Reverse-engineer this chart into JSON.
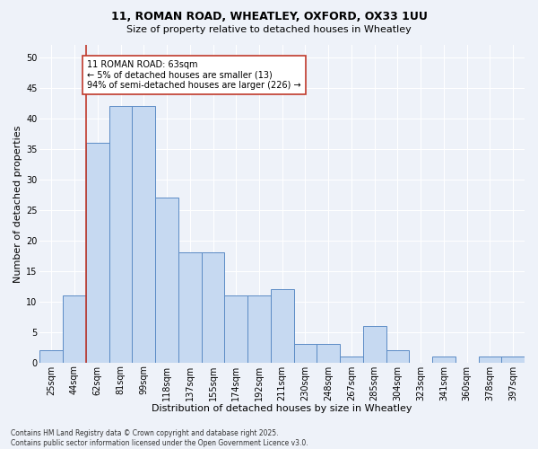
{
  "title_line1": "11, ROMAN ROAD, WHEATLEY, OXFORD, OX33 1UU",
  "title_line2": "Size of property relative to detached houses in Wheatley",
  "xlabel": "Distribution of detached houses by size in Wheatley",
  "ylabel": "Number of detached properties",
  "categories": [
    "25sqm",
    "44sqm",
    "62sqm",
    "81sqm",
    "99sqm",
    "118sqm",
    "137sqm",
    "155sqm",
    "174sqm",
    "192sqm",
    "211sqm",
    "230sqm",
    "248sqm",
    "267sqm",
    "285sqm",
    "304sqm",
    "323sqm",
    "341sqm",
    "360sqm",
    "378sqm",
    "397sqm"
  ],
  "values": [
    2,
    11,
    36,
    42,
    42,
    27,
    18,
    18,
    11,
    11,
    12,
    3,
    3,
    1,
    6,
    2,
    0,
    1,
    0,
    1,
    1
  ],
  "bar_color": "#c6d9f1",
  "bar_edge_color": "#5b8bc5",
  "vline_color": "#c0392b",
  "vline_x_index": 1.5,
  "annotation_text": "11 ROMAN ROAD: 63sqm\n← 5% of detached houses are smaller (13)\n94% of semi-detached houses are larger (226) →",
  "annotation_box_color": "#ffffff",
  "annotation_box_edge": "#c0392b",
  "ylim": [
    0,
    52
  ],
  "yticks": [
    0,
    5,
    10,
    15,
    20,
    25,
    30,
    35,
    40,
    45,
    50
  ],
  "footer": "Contains HM Land Registry data © Crown copyright and database right 2025.\nContains public sector information licensed under the Open Government Licence v3.0.",
  "background_color": "#eef2f9",
  "plot_bg_color": "#eef2f9",
  "grid_color": "#ffffff",
  "title_fontsize": 9,
  "subtitle_fontsize": 8,
  "xlabel_fontsize": 8,
  "ylabel_fontsize": 8,
  "tick_fontsize": 7,
  "annotation_fontsize": 7,
  "footer_fontsize": 5.5
}
